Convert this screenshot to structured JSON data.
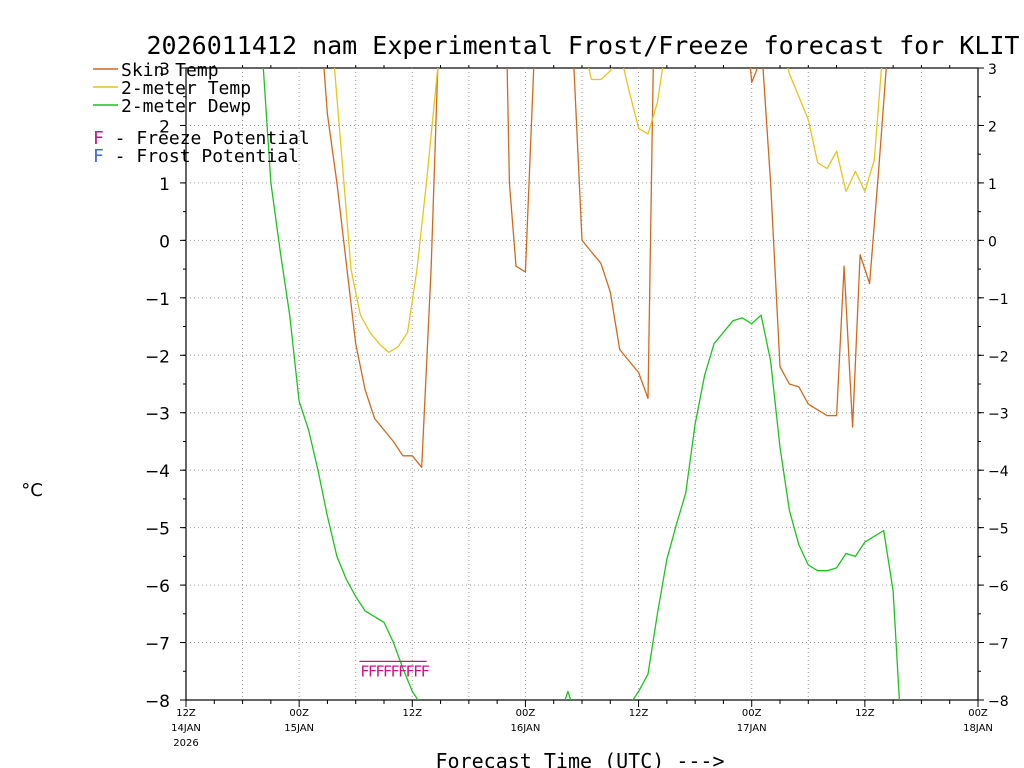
{
  "chart_data": {
    "type": "line",
    "title": "2026011412 nam Experimental Frost/Freeze forecast for KLIT",
    "ylabel": "°C",
    "xlabel": "Forecast Time (UTC) --->",
    "ylim": [
      -8,
      3
    ],
    "yticks": [
      3,
      2,
      1,
      0,
      -1,
      -2,
      -3,
      -4,
      -5,
      -6,
      -7,
      -8
    ],
    "ytick_labels": [
      "3",
      "2",
      "1",
      "0",
      "−1",
      "−2",
      "−3",
      "−4",
      "−5",
      "−6",
      "−7",
      "−8"
    ],
    "xlim_hours": [
      0,
      84
    ],
    "x_unit": "forecast hours from 2026-01-14 12Z",
    "xticks": [
      {
        "hour": 0,
        "label": "12Z",
        "date": "14JAN",
        "year": "2026"
      },
      {
        "hour": 12,
        "label": "00Z",
        "date": "15JAN",
        "year": ""
      },
      {
        "hour": 24,
        "label": "12Z",
        "date": "",
        "year": ""
      },
      {
        "hour": 36,
        "label": "00Z",
        "date": "16JAN",
        "year": ""
      },
      {
        "hour": 48,
        "label": "12Z",
        "date": "",
        "year": ""
      },
      {
        "hour": 60,
        "label": "00Z",
        "date": "17JAN",
        "year": ""
      },
      {
        "hour": 72,
        "label": "12Z",
        "date": "",
        "year": ""
      },
      {
        "hour": 84,
        "label": "00Z",
        "date": "18JAN",
        "year": ""
      }
    ],
    "grid": true,
    "legend_position": "top-left",
    "legend": [
      {
        "label": "Skin Temp",
        "color": "#d2691e"
      },
      {
        "label": "2-meter Temp",
        "color": "#e6c619"
      },
      {
        "label": "2-meter Dewp",
        "color": "#1bc41b"
      }
    ],
    "legend_potentials": [
      {
        "letter": "F",
        "text": " - Freeze Potential",
        "color": "#c71585"
      },
      {
        "letter": "F",
        "text": " - Frost Potential",
        "color": "#4169e1"
      }
    ],
    "freeze_markers": {
      "label": "F",
      "hours": [
        18.5,
        19.3,
        20.1,
        20.9,
        21.7,
        22.5,
        23.3,
        24.1,
        24.9
      ],
      "level": -7.45,
      "color": "#c71585"
    },
    "series": [
      {
        "name": "Skin Temp",
        "color": "#d2691e",
        "points": [
          [
            14.5,
            3.3
          ],
          [
            15.0,
            2.2
          ],
          [
            16.0,
            1.0
          ],
          [
            17.0,
            -0.4
          ],
          [
            18.0,
            -1.8
          ],
          [
            19.0,
            -2.6
          ],
          [
            20.0,
            -3.1
          ],
          [
            21.0,
            -3.3
          ],
          [
            22.0,
            -3.5
          ],
          [
            23.0,
            -3.75
          ],
          [
            24.0,
            -3.75
          ],
          [
            25.0,
            -3.95
          ],
          [
            26.0,
            -0.5
          ],
          [
            26.8,
            3.5
          ],
          [
            34.0,
            3.5
          ],
          [
            34.3,
            1.0
          ],
          [
            35.0,
            -0.45
          ],
          [
            36.0,
            -0.55
          ],
          [
            37.0,
            3.5
          ],
          [
            41.0,
            3.5
          ],
          [
            42.0,
            0.0
          ],
          [
            43.0,
            -0.2
          ],
          [
            44.0,
            -0.4
          ],
          [
            45.0,
            -0.9
          ],
          [
            46.0,
            -1.9
          ],
          [
            47.0,
            -2.1
          ],
          [
            48.0,
            -2.3
          ],
          [
            49.0,
            -2.75
          ],
          [
            49.6,
            3.5
          ],
          [
            59.6,
            3.5
          ],
          [
            60.0,
            2.75
          ],
          [
            60.5,
            2.95
          ],
          [
            61.0,
            3.5
          ],
          [
            62.0,
            1.0
          ],
          [
            63.0,
            -2.2
          ],
          [
            64.0,
            -2.5
          ],
          [
            65.0,
            -2.55
          ],
          [
            66.0,
            -2.85
          ],
          [
            67.0,
            -2.95
          ],
          [
            68.0,
            -3.05
          ],
          [
            69.0,
            -3.05
          ],
          [
            69.8,
            -0.45
          ],
          [
            70.7,
            -3.25
          ],
          [
            71.5,
            -0.25
          ],
          [
            72.5,
            -0.75
          ],
          [
            73.5,
            1.3
          ],
          [
            74.5,
            3.5
          ]
        ]
      },
      {
        "name": "2-meter Temp",
        "color": "#e6c619",
        "points": [
          [
            15.5,
            3.5
          ],
          [
            16.5,
            1.5
          ],
          [
            17.5,
            -0.5
          ],
          [
            18.5,
            -1.3
          ],
          [
            19.5,
            -1.6
          ],
          [
            20.5,
            -1.8
          ],
          [
            21.5,
            -1.95
          ],
          [
            22.5,
            -1.85
          ],
          [
            23.5,
            -1.6
          ],
          [
            24.5,
            -0.5
          ],
          [
            25.5,
            1.0
          ],
          [
            27.0,
            3.5
          ],
          [
            42.0,
            3.5
          ],
          [
            43.0,
            2.8
          ],
          [
            44.0,
            2.8
          ],
          [
            45.0,
            2.95
          ],
          [
            46.0,
            3.3
          ],
          [
            47.0,
            2.6
          ],
          [
            48.0,
            1.95
          ],
          [
            49.0,
            1.85
          ],
          [
            50.0,
            2.4
          ],
          [
            51.0,
            3.5
          ],
          [
            63.0,
            3.5
          ],
          [
            64.0,
            2.9
          ],
          [
            65.0,
            2.5
          ],
          [
            66.0,
            2.1
          ],
          [
            67.0,
            1.35
          ],
          [
            68.0,
            1.25
          ],
          [
            69.0,
            1.55
          ],
          [
            70.0,
            0.85
          ],
          [
            71.0,
            1.2
          ],
          [
            72.0,
            0.85
          ],
          [
            73.0,
            1.4
          ],
          [
            74.0,
            3.5
          ]
        ]
      },
      {
        "name": "2-meter Dewp",
        "color": "#1bc41b",
        "points": [
          [
            8.0,
            3.5
          ],
          [
            9.0,
            1.0
          ],
          [
            10.0,
            -0.2
          ],
          [
            11.0,
            -1.3
          ],
          [
            12.0,
            -2.8
          ],
          [
            13.0,
            -3.3
          ],
          [
            14.0,
            -4.0
          ],
          [
            15.0,
            -4.8
          ],
          [
            16.0,
            -5.5
          ],
          [
            17.0,
            -5.9
          ],
          [
            18.0,
            -6.2
          ],
          [
            19.0,
            -6.45
          ],
          [
            20.0,
            -6.55
          ],
          [
            21.0,
            -6.65
          ],
          [
            22.0,
            -7.0
          ],
          [
            23.0,
            -7.45
          ],
          [
            24.0,
            -7.85
          ],
          [
            25.0,
            -8.1
          ],
          [
            40.0,
            -8.1
          ],
          [
            40.5,
            -7.85
          ],
          [
            41.0,
            -8.1
          ],
          [
            47.0,
            -8.1
          ],
          [
            48.0,
            -7.85
          ],
          [
            49.0,
            -7.55
          ],
          [
            50.0,
            -6.5
          ],
          [
            51.0,
            -5.55
          ],
          [
            52.0,
            -4.95
          ],
          [
            53.0,
            -4.4
          ],
          [
            54.0,
            -3.2
          ],
          [
            55.0,
            -2.35
          ],
          [
            56.0,
            -1.8
          ],
          [
            57.0,
            -1.6
          ],
          [
            58.0,
            -1.4
          ],
          [
            59.0,
            -1.35
          ],
          [
            60.0,
            -1.45
          ],
          [
            61.0,
            -1.3
          ],
          [
            62.0,
            -2.1
          ],
          [
            63.0,
            -3.6
          ],
          [
            64.0,
            -4.7
          ],
          [
            65.0,
            -5.3
          ],
          [
            66.0,
            -5.65
          ],
          [
            67.0,
            -5.75
          ],
          [
            68.0,
            -5.75
          ],
          [
            69.0,
            -5.7
          ],
          [
            70.0,
            -5.45
          ],
          [
            71.0,
            -5.5
          ],
          [
            72.0,
            -5.25
          ],
          [
            73.0,
            -5.15
          ],
          [
            74.0,
            -5.05
          ],
          [
            75.0,
            -6.1
          ],
          [
            75.7,
            -8.1
          ]
        ]
      }
    ]
  }
}
